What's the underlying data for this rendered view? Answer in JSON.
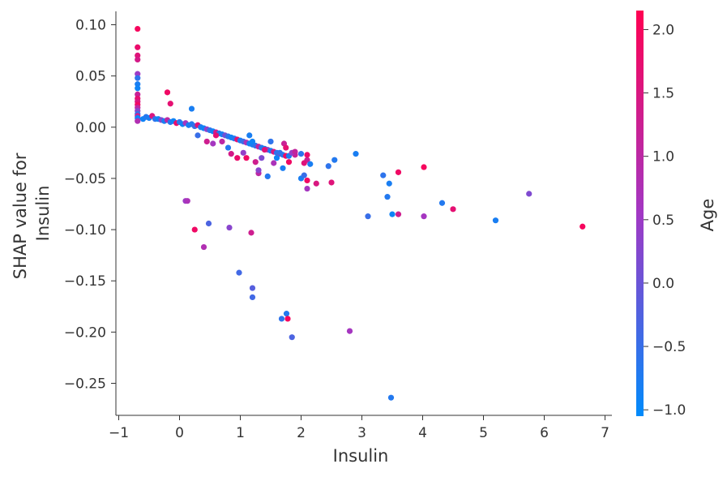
{
  "chart_data": {
    "type": "scatter",
    "xlabel": "Insulin",
    "ylabel": [
      "SHAP value for",
      "Insulin"
    ],
    "xlim": [
      -1,
      7
    ],
    "ylim": [
      -0.28,
      0.112
    ],
    "x_ticks": [
      -1,
      0,
      1,
      2,
      3,
      4,
      5,
      6,
      7
    ],
    "x_tick_labels": [
      "−1",
      "0",
      "1",
      "2",
      "3",
      "4",
      "5",
      "6",
      "7"
    ],
    "y_ticks": [
      0.1,
      0.05,
      0.0,
      -0.05,
      -0.1,
      -0.15,
      -0.2,
      -0.25
    ],
    "y_tick_labels": [
      "0.10",
      "0.05",
      "0.00",
      "−0.05",
      "−0.10",
      "−0.15",
      "−0.20",
      "−0.25"
    ],
    "grid": false,
    "colorbar": {
      "label": "Age",
      "range": [
        -1.05,
        2.15
      ],
      "ticks": [
        2.0,
        1.5,
        1.0,
        0.5,
        0.0,
        -0.5,
        -1.0
      ],
      "tick_labels": [
        "2.0",
        "1.5",
        "1.0",
        "0.5",
        "0.0",
        "−0.5",
        "−1.0"
      ],
      "colors": [
        "#008bfb",
        "#ff0052"
      ]
    },
    "points": [
      {
        "x": -0.69,
        "y": 0.096,
        "c": 2.0
      },
      {
        "x": -0.69,
        "y": 0.078,
        "c": 1.8
      },
      {
        "x": -0.69,
        "y": 0.07,
        "c": 1.6
      },
      {
        "x": -0.69,
        "y": 0.066,
        "c": 1.4
      },
      {
        "x": -0.69,
        "y": 0.052,
        "c": 0.5
      },
      {
        "x": -0.69,
        "y": 0.048,
        "c": -0.6
      },
      {
        "x": -0.69,
        "y": 0.042,
        "c": -0.8
      },
      {
        "x": -0.69,
        "y": 0.038,
        "c": -0.9
      },
      {
        "x": -0.69,
        "y": 0.032,
        "c": 1.2
      },
      {
        "x": -0.69,
        "y": 0.028,
        "c": 1.7
      },
      {
        "x": -0.69,
        "y": 0.025,
        "c": 1.5
      },
      {
        "x": -0.69,
        "y": 0.022,
        "c": 1.9
      },
      {
        "x": -0.69,
        "y": 0.019,
        "c": 1.0
      },
      {
        "x": -0.69,
        "y": 0.016,
        "c": 0.3
      },
      {
        "x": -0.69,
        "y": 0.013,
        "c": -0.5
      },
      {
        "x": -0.69,
        "y": 0.011,
        "c": 1.3
      },
      {
        "x": -0.69,
        "y": 0.009,
        "c": -0.9
      },
      {
        "x": -0.69,
        "y": 0.006,
        "c": 0.8
      },
      {
        "x": -0.6,
        "y": 0.008,
        "c": -0.9
      },
      {
        "x": -0.55,
        "y": 0.01,
        "c": -0.7
      },
      {
        "x": -0.5,
        "y": 0.009,
        "c": -0.8
      },
      {
        "x": -0.45,
        "y": 0.011,
        "c": 1.5
      },
      {
        "x": -0.4,
        "y": 0.008,
        "c": -0.6
      },
      {
        "x": -0.35,
        "y": 0.008,
        "c": -0.9
      },
      {
        "x": -0.3,
        "y": 0.007,
        "c": 0.2
      },
      {
        "x": -0.25,
        "y": 0.006,
        "c": -0.8
      },
      {
        "x": -0.2,
        "y": 0.007,
        "c": 1.0
      },
      {
        "x": -0.15,
        "y": 0.005,
        "c": -0.7
      },
      {
        "x": -0.1,
        "y": 0.006,
        "c": -0.9
      },
      {
        "x": -0.05,
        "y": 0.004,
        "c": 1.8
      },
      {
        "x": 0.0,
        "y": 0.005,
        "c": -0.6
      },
      {
        "x": 0.05,
        "y": 0.003,
        "c": -0.9
      },
      {
        "x": 0.1,
        "y": 0.004,
        "c": 0.6
      },
      {
        "x": 0.15,
        "y": 0.002,
        "c": -0.8
      },
      {
        "x": 0.2,
        "y": 0.003,
        "c": -0.7
      },
      {
        "x": 0.25,
        "y": 0.001,
        "c": -0.5
      },
      {
        "x": 0.3,
        "y": 0.002,
        "c": 1.6
      },
      {
        "x": 0.35,
        "y": 0.0,
        "c": -0.8
      },
      {
        "x": 0.4,
        "y": -0.001,
        "c": -0.9
      },
      {
        "x": 0.45,
        "y": -0.002,
        "c": 0.4
      },
      {
        "x": 0.5,
        "y": -0.003,
        "c": -0.6
      },
      {
        "x": 0.55,
        "y": -0.004,
        "c": -0.9
      },
      {
        "x": 0.6,
        "y": -0.005,
        "c": 1.3
      },
      {
        "x": 0.65,
        "y": -0.006,
        "c": -0.7
      },
      {
        "x": 0.7,
        "y": -0.007,
        "c": -0.8
      },
      {
        "x": 0.75,
        "y": -0.008,
        "c": 0.1
      },
      {
        "x": 0.8,
        "y": -0.009,
        "c": -0.6
      },
      {
        "x": 0.85,
        "y": -0.01,
        "c": -0.9
      },
      {
        "x": 0.9,
        "y": -0.011,
        "c": -0.7
      },
      {
        "x": 0.95,
        "y": -0.012,
        "c": 1.7
      },
      {
        "x": 1.0,
        "y": -0.013,
        "c": -0.8
      },
      {
        "x": 1.05,
        "y": -0.014,
        "c": -0.5
      },
      {
        "x": 1.1,
        "y": -0.015,
        "c": 0.7
      },
      {
        "x": 1.15,
        "y": -0.016,
        "c": -0.9
      },
      {
        "x": 1.2,
        "y": -0.017,
        "c": -0.8
      },
      {
        "x": 1.25,
        "y": -0.018,
        "c": -0.6
      },
      {
        "x": 1.3,
        "y": -0.019,
        "c": 1.1
      },
      {
        "x": 1.35,
        "y": -0.02,
        "c": -0.7
      },
      {
        "x": 1.4,
        "y": -0.021,
        "c": -0.9
      },
      {
        "x": 1.45,
        "y": -0.022,
        "c": 0.3
      },
      {
        "x": 1.5,
        "y": -0.023,
        "c": -0.8
      },
      {
        "x": 1.55,
        "y": -0.024,
        "c": 1.5
      },
      {
        "x": 1.6,
        "y": -0.025,
        "c": -0.6
      },
      {
        "x": 1.65,
        "y": -0.026,
        "c": 0.9
      },
      {
        "x": 1.7,
        "y": -0.027,
        "c": -0.7
      },
      {
        "x": 1.75,
        "y": -0.028,
        "c": 1.9
      },
      {
        "x": 1.8,
        "y": -0.028,
        "c": -0.8
      },
      {
        "x": 1.9,
        "y": -0.027,
        "c": 1.2
      },
      {
        "x": 2.0,
        "y": -0.026,
        "c": -0.6
      },
      {
        "x": 0.2,
        "y": 0.018,
        "c": -0.8
      },
      {
        "x": -0.2,
        "y": 0.034,
        "c": 1.9
      },
      {
        "x": -0.15,
        "y": 0.023,
        "c": 1.7
      },
      {
        "x": 0.3,
        "y": -0.008,
        "c": -0.5
      },
      {
        "x": 0.45,
        "y": -0.014,
        "c": 1.3
      },
      {
        "x": 0.55,
        "y": -0.016,
        "c": 0.6
      },
      {
        "x": 0.6,
        "y": -0.008,
        "c": 1.7
      },
      {
        "x": 0.7,
        "y": -0.014,
        "c": 1.0
      },
      {
        "x": 0.8,
        "y": -0.02,
        "c": -0.7
      },
      {
        "x": 0.85,
        "y": -0.026,
        "c": 1.4
      },
      {
        "x": 0.95,
        "y": -0.03,
        "c": 1.8
      },
      {
        "x": 1.05,
        "y": -0.025,
        "c": 0.4
      },
      {
        "x": 1.1,
        "y": -0.03,
        "c": 1.9
      },
      {
        "x": 1.15,
        "y": -0.008,
        "c": -0.8
      },
      {
        "x": 1.2,
        "y": -0.014,
        "c": -0.9
      },
      {
        "x": 1.25,
        "y": -0.034,
        "c": 1.3
      },
      {
        "x": 1.3,
        "y": -0.045,
        "c": 1.0
      },
      {
        "x": 1.35,
        "y": -0.03,
        "c": 0.2
      },
      {
        "x": 1.4,
        "y": -0.022,
        "c": 1.6
      },
      {
        "x": 1.45,
        "y": -0.048,
        "c": -0.7
      },
      {
        "x": 1.5,
        "y": -0.014,
        "c": -0.6
      },
      {
        "x": 1.55,
        "y": -0.035,
        "c": 0.7
      },
      {
        "x": 1.6,
        "y": -0.03,
        "c": -0.9
      },
      {
        "x": 1.7,
        "y": -0.04,
        "c": -0.8
      },
      {
        "x": 1.72,
        "y": -0.016,
        "c": 1.2
      },
      {
        "x": 1.75,
        "y": -0.02,
        "c": 1.7
      },
      {
        "x": 1.8,
        "y": -0.034,
        "c": 1.9
      },
      {
        "x": 1.85,
        "y": -0.025,
        "c": 0.5
      },
      {
        "x": 1.9,
        "y": -0.024,
        "c": 1.1
      },
      {
        "x": 1.3,
        "y": -0.042,
        "c": 0.3
      },
      {
        "x": 1.65,
        "y": -0.025,
        "c": -0.6
      },
      {
        "x": 2.0,
        "y": -0.05,
        "c": -0.8
      },
      {
        "x": 2.05,
        "y": -0.047,
        "c": -0.5
      },
      {
        "x": 2.1,
        "y": -0.06,
        "c": 0.6
      },
      {
        "x": 2.1,
        "y": -0.032,
        "c": 1.2
      },
      {
        "x": 2.15,
        "y": -0.036,
        "c": -0.8
      },
      {
        "x": 2.1,
        "y": -0.052,
        "c": 1.9
      },
      {
        "x": 2.25,
        "y": -0.055,
        "c": 1.5
      },
      {
        "x": 2.05,
        "y": -0.035,
        "c": 1.6
      },
      {
        "x": 2.1,
        "y": -0.027,
        "c": 1.8
      },
      {
        "x": 2.45,
        "y": -0.038,
        "c": -0.6
      },
      {
        "x": 2.5,
        "y": -0.054,
        "c": 1.6
      },
      {
        "x": 2.55,
        "y": -0.032,
        "c": -0.7
      },
      {
        "x": 2.9,
        "y": -0.026,
        "c": -0.8
      },
      {
        "x": 3.1,
        "y": -0.087,
        "c": -0.5
      },
      {
        "x": 3.35,
        "y": -0.047,
        "c": -0.6
      },
      {
        "x": 3.42,
        "y": -0.068,
        "c": -0.7
      },
      {
        "x": 3.45,
        "y": -0.055,
        "c": -0.8
      },
      {
        "x": 3.5,
        "y": -0.085,
        "c": -0.9
      },
      {
        "x": 3.6,
        "y": -0.044,
        "c": 1.9
      },
      {
        "x": 3.6,
        "y": -0.085,
        "c": 1.3
      },
      {
        "x": 4.02,
        "y": -0.039,
        "c": 2.0
      },
      {
        "x": 4.02,
        "y": -0.087,
        "c": 0.6
      },
      {
        "x": 4.32,
        "y": -0.074,
        "c": -0.7
      },
      {
        "x": 4.5,
        "y": -0.08,
        "c": 1.7
      },
      {
        "x": 5.2,
        "y": -0.091,
        "c": -0.8
      },
      {
        "x": 5.75,
        "y": -0.065,
        "c": 0.2
      },
      {
        "x": 6.63,
        "y": -0.097,
        "c": 2.0
      },
      {
        "x": 0.1,
        "y": -0.072,
        "c": 0.5
      },
      {
        "x": 0.13,
        "y": -0.072,
        "c": 0.7
      },
      {
        "x": 0.25,
        "y": -0.1,
        "c": 1.9
      },
      {
        "x": 0.4,
        "y": -0.117,
        "c": 0.8
      },
      {
        "x": 0.48,
        "y": -0.094,
        "c": -0.3
      },
      {
        "x": 0.82,
        "y": -0.098,
        "c": 0.3
      },
      {
        "x": 1.18,
        "y": -0.103,
        "c": 1.3
      },
      {
        "x": 0.98,
        "y": -0.142,
        "c": -0.4
      },
      {
        "x": 1.2,
        "y": -0.157,
        "c": -0.2
      },
      {
        "x": 1.2,
        "y": -0.166,
        "c": -0.4
      },
      {
        "x": 1.68,
        "y": -0.187,
        "c": -0.6
      },
      {
        "x": 1.76,
        "y": -0.182,
        "c": -0.7
      },
      {
        "x": 1.78,
        "y": -0.187,
        "c": 2.0
      },
      {
        "x": 1.85,
        "y": -0.205,
        "c": -0.3
      },
      {
        "x": 2.8,
        "y": -0.199,
        "c": 0.6
      },
      {
        "x": 3.48,
        "y": -0.264,
        "c": -0.7
      }
    ]
  }
}
